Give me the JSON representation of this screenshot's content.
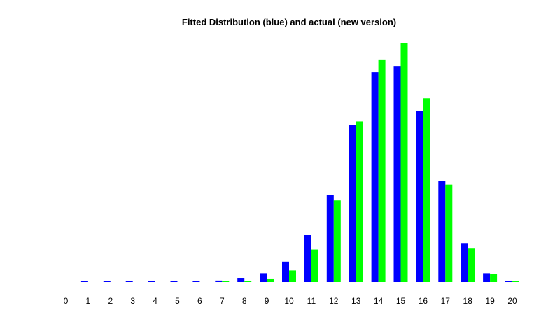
{
  "chart_data": {
    "type": "bar",
    "title": "Fitted Distribution (blue) and actual (new version)",
    "xlabel": "",
    "ylabel": "",
    "categories": [
      "0",
      "1",
      "2",
      "3",
      "4",
      "5",
      "6",
      "7",
      "8",
      "9",
      "10",
      "11",
      "12",
      "13",
      "14",
      "15",
      "16",
      "17",
      "18",
      "19",
      "20"
    ],
    "series": [
      {
        "color": "#0000ff",
        "values": [
          0,
          0.5,
          0.1,
          0.5,
          0.5,
          0.6,
          0.8,
          1.6,
          4.5,
          9.5,
          22,
          51,
          94,
          169,
          226,
          232,
          184,
          109,
          42,
          9.5,
          0.8
        ]
      },
      {
        "color": "#00ff00",
        "values": [
          0,
          0,
          0,
          0,
          0,
          0,
          0,
          0.9,
          1.2,
          3.8,
          12.5,
          35,
          88,
          173,
          239,
          257,
          198,
          105,
          36,
          9,
          0.8
        ]
      }
    ],
    "ylim": [
      0,
      260
    ],
    "grid": false,
    "legend": "none"
  }
}
